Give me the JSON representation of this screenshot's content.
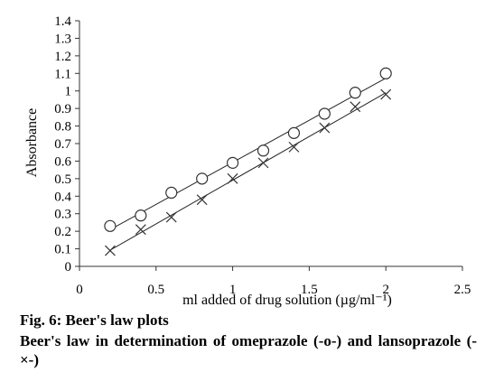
{
  "chart_data": {
    "type": "scatter",
    "title": "",
    "xlabel": "ml  added of drug solution (µg/ml⁻¹)",
    "ylabel": "Absorbance",
    "xlim": [
      0,
      2.5
    ],
    "ylim": [
      0,
      1.4
    ],
    "x_ticks": [
      "0",
      "0.5",
      "1",
      "1.5",
      "2",
      "2.5"
    ],
    "y_ticks": [
      "0",
      "0.1",
      "0.2",
      "0.3",
      "0.4",
      "0.5",
      "0.6",
      "0.7",
      "0.8",
      "0.9",
      "1",
      "1.1",
      "1.2",
      "1.3",
      "1.4"
    ],
    "grid": false,
    "series": [
      {
        "marker": "circle",
        "trendline": "linear",
        "x": [
          0.2,
          0.4,
          0.6,
          0.8,
          1.0,
          1.2,
          1.4,
          1.6,
          1.8,
          2.0
        ],
        "y": [
          0.23,
          0.29,
          0.42,
          0.5,
          0.59,
          0.66,
          0.76,
          0.87,
          0.99,
          1.1
        ]
      },
      {
        "marker": "cross",
        "trendline": "linear",
        "x": [
          0.2,
          0.4,
          0.6,
          0.8,
          1.0,
          1.2,
          1.4,
          1.6,
          1.8,
          2.0
        ],
        "y": [
          0.09,
          0.21,
          0.28,
          0.38,
          0.5,
          0.59,
          0.68,
          0.79,
          0.91,
          0.98
        ]
      }
    ]
  },
  "caption": {
    "title": "Fig. 6: Beer's law plots",
    "body": "Beer's law in determination of omeprazole (-o-) and lansoprazole (-×-)"
  }
}
